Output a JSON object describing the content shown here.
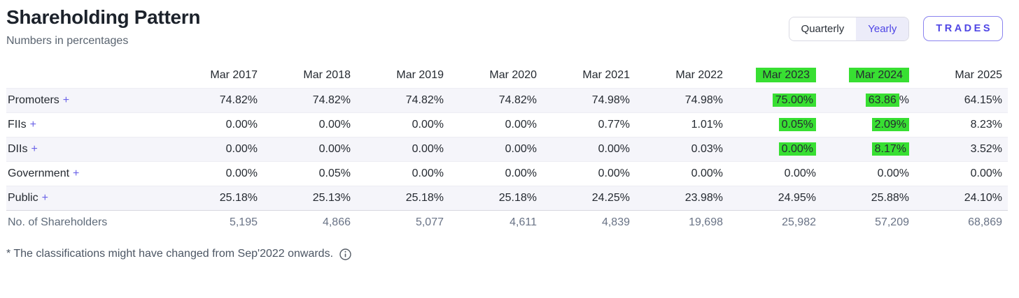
{
  "header": {
    "title": "Shareholding Pattern",
    "subtitle": "Numbers in percentages",
    "toggle": {
      "quarterly": "Quarterly",
      "yearly": "Yearly",
      "selected": "Yearly"
    },
    "trades_label": "TRADES"
  },
  "colors": {
    "accent_purple": "#4f46e5",
    "plus_purple": "#6b63e8",
    "highlight_green": "#38df32",
    "stripe_bg": "#f5f5fa"
  },
  "table": {
    "columns": [
      "Mar 2017",
      "Mar 2018",
      "Mar 2019",
      "Mar 2020",
      "Mar 2021",
      "Mar 2022",
      "Mar 2023",
      "Mar 2024",
      "Mar 2025"
    ],
    "highlighted_columns": [
      "Mar 2023",
      "Mar 2024"
    ],
    "rows": [
      {
        "label": "Promoters",
        "expandable": true,
        "muted": false,
        "cells": [
          {
            "v": "74.82%"
          },
          {
            "v": "74.82%"
          },
          {
            "v": "74.82%"
          },
          {
            "v": "74.82%"
          },
          {
            "v": "74.98%"
          },
          {
            "v": "74.98%"
          },
          {
            "v": "75.00%",
            "hl": "75.00%"
          },
          {
            "v": "63.86%",
            "hl": "63.86"
          },
          {
            "v": "64.15%"
          }
        ]
      },
      {
        "label": "FIIs",
        "expandable": true,
        "muted": false,
        "cells": [
          {
            "v": "0.00%"
          },
          {
            "v": "0.00%"
          },
          {
            "v": "0.00%"
          },
          {
            "v": "0.00%"
          },
          {
            "v": "0.77%"
          },
          {
            "v": "1.01%"
          },
          {
            "v": "0.05%",
            "hl": "0.05%"
          },
          {
            "v": "2.09%",
            "hl": "2.09%"
          },
          {
            "v": "8.23%"
          }
        ]
      },
      {
        "label": "DIIs",
        "expandable": true,
        "muted": false,
        "cells": [
          {
            "v": "0.00%"
          },
          {
            "v": "0.00%"
          },
          {
            "v": "0.00%"
          },
          {
            "v": "0.00%"
          },
          {
            "v": "0.00%"
          },
          {
            "v": "0.03%"
          },
          {
            "v": "0.00%",
            "hl": "0.00%"
          },
          {
            "v": "8.17%",
            "hl": "8.17%"
          },
          {
            "v": "3.52%"
          }
        ]
      },
      {
        "label": "Government",
        "expandable": true,
        "muted": false,
        "cells": [
          {
            "v": "0.00%"
          },
          {
            "v": "0.05%"
          },
          {
            "v": "0.00%"
          },
          {
            "v": "0.00%"
          },
          {
            "v": "0.00%"
          },
          {
            "v": "0.00%"
          },
          {
            "v": "0.00%"
          },
          {
            "v": "0.00%"
          },
          {
            "v": "0.00%"
          }
        ]
      },
      {
        "label": "Public",
        "expandable": true,
        "muted": false,
        "cells": [
          {
            "v": "25.18%"
          },
          {
            "v": "25.13%"
          },
          {
            "v": "25.18%"
          },
          {
            "v": "25.18%"
          },
          {
            "v": "24.25%"
          },
          {
            "v": "23.98%"
          },
          {
            "v": "24.95%"
          },
          {
            "v": "25.88%"
          },
          {
            "v": "24.10%"
          }
        ]
      },
      {
        "label": "No. of Shareholders",
        "expandable": false,
        "muted": true,
        "cells": [
          {
            "v": "5,195"
          },
          {
            "v": "4,866"
          },
          {
            "v": "5,077"
          },
          {
            "v": "4,611"
          },
          {
            "v": "4,839"
          },
          {
            "v": "19,698"
          },
          {
            "v": "25,982"
          },
          {
            "v": "57,209"
          },
          {
            "v": "68,869"
          }
        ]
      }
    ]
  },
  "footer": {
    "note": "* The classifications might have changed from Sep'2022 onwards.",
    "info_icon": "info-icon"
  }
}
